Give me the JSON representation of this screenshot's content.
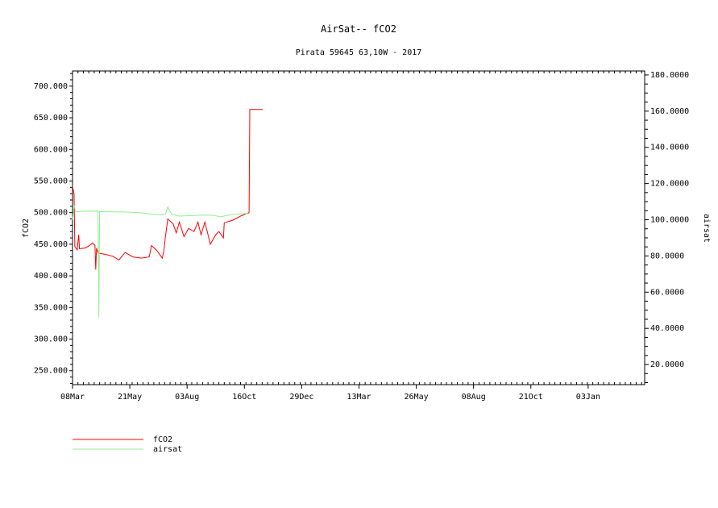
{
  "chart_data": {
    "type": "line",
    "title": "AirSat-- fCO2",
    "subtitle": "Pirata 59645 63,10W - 2017",
    "ylabel": "fCO2",
    "y2label": "airsat",
    "xlim": [
      "2017-03-08",
      "2019-03-17"
    ],
    "ylim": [
      228,
      724
    ],
    "y2lim": [
      8.9,
      182.2
    ],
    "xticks": [
      {
        "date": "2017-03-08",
        "label": "08Mar"
      },
      {
        "date": "2017-05-21",
        "label": "21May"
      },
      {
        "date": "2017-08-03",
        "label": "03Aug"
      },
      {
        "date": "2017-10-16",
        "label": "16Oct"
      },
      {
        "date": "2017-12-29",
        "label": "29Dec"
      },
      {
        "date": "2018-03-13",
        "label": "13Mar"
      },
      {
        "date": "2018-05-26",
        "label": "26May"
      },
      {
        "date": "2018-08-08",
        "label": "08Aug"
      },
      {
        "date": "2018-10-21",
        "label": "21Oct"
      },
      {
        "date": "2019-01-03",
        "label": "03Jan"
      }
    ],
    "yticks": [
      "250.000",
      "300.000",
      "350.000",
      "400.000",
      "450.000",
      "500.000",
      "550.000",
      "600.000",
      "650.000",
      "700.000"
    ],
    "y2ticks": [
      "20.0000",
      "40.0000",
      "60.0000",
      "80.0000",
      "100.0000",
      "120.0000",
      "140.0000",
      "160.0000",
      "180.0000"
    ],
    "grid": false,
    "legend_placement": "bottom-left",
    "series": [
      {
        "name": "fCO2",
        "axis": "left",
        "color": "#ff0000",
        "points": [
          [
            "2017-03-08",
            541
          ],
          [
            "2017-03-10",
            530
          ],
          [
            "2017-03-11",
            446
          ],
          [
            "2017-03-14",
            441
          ],
          [
            "2017-03-16",
            465
          ],
          [
            "2017-03-17",
            443
          ],
          [
            "2017-03-24",
            444
          ],
          [
            "2017-03-29",
            447
          ],
          [
            "2017-04-03",
            452
          ],
          [
            "2017-04-06",
            448
          ],
          [
            "2017-04-07",
            410
          ],
          [
            "2017-04-08",
            444
          ],
          [
            "2017-04-10",
            436
          ],
          [
            "2017-04-19",
            434
          ],
          [
            "2017-04-29",
            431
          ],
          [
            "2017-05-07",
            425
          ],
          [
            "2017-05-15",
            437
          ],
          [
            "2017-05-25",
            430
          ],
          [
            "2017-06-05",
            428
          ],
          [
            "2017-06-15",
            430
          ],
          [
            "2017-06-18",
            448
          ],
          [
            "2017-06-25",
            440
          ],
          [
            "2017-07-02",
            428
          ],
          [
            "2017-07-04",
            440
          ],
          [
            "2017-07-06",
            462
          ],
          [
            "2017-07-09",
            490
          ],
          [
            "2017-07-16",
            482
          ],
          [
            "2017-07-20",
            468
          ],
          [
            "2017-07-24",
            485
          ],
          [
            "2017-07-30",
            462
          ],
          [
            "2017-08-05",
            475
          ],
          [
            "2017-08-12",
            470
          ],
          [
            "2017-08-17",
            485
          ],
          [
            "2017-08-21",
            465
          ],
          [
            "2017-08-26",
            485
          ],
          [
            "2017-09-02",
            450
          ],
          [
            "2017-09-09",
            465
          ],
          [
            "2017-09-13",
            470
          ],
          [
            "2017-09-19",
            460
          ],
          [
            "2017-09-20",
            484
          ],
          [
            "2017-10-01",
            488
          ],
          [
            "2017-10-12",
            495
          ],
          [
            "2017-10-22",
            500
          ],
          [
            "2017-10-23",
            663
          ],
          [
            "2017-11-09",
            663
          ]
        ]
      },
      {
        "name": "airsat",
        "axis": "right",
        "color": "#90ee90",
        "points": [
          [
            "2017-03-08",
            100
          ],
          [
            "2017-03-10",
            108
          ],
          [
            "2017-03-12",
            104.5
          ],
          [
            "2017-04-10",
            104.8
          ],
          [
            "2017-04-11",
            46
          ],
          [
            "2017-04-12",
            104.5
          ],
          [
            "2017-05-15",
            104.3
          ],
          [
            "2017-06-05",
            103.8
          ],
          [
            "2017-06-25",
            102.8
          ],
          [
            "2017-07-06",
            103
          ],
          [
            "2017-07-09",
            107
          ],
          [
            "2017-07-14",
            103
          ],
          [
            "2017-07-24",
            102
          ],
          [
            "2017-08-12",
            102.3
          ],
          [
            "2017-08-20",
            102.5
          ],
          [
            "2017-09-05",
            102.5
          ],
          [
            "2017-09-15",
            101.6
          ],
          [
            "2017-10-01",
            103
          ],
          [
            "2017-10-22",
            103.5
          ]
        ]
      }
    ]
  }
}
